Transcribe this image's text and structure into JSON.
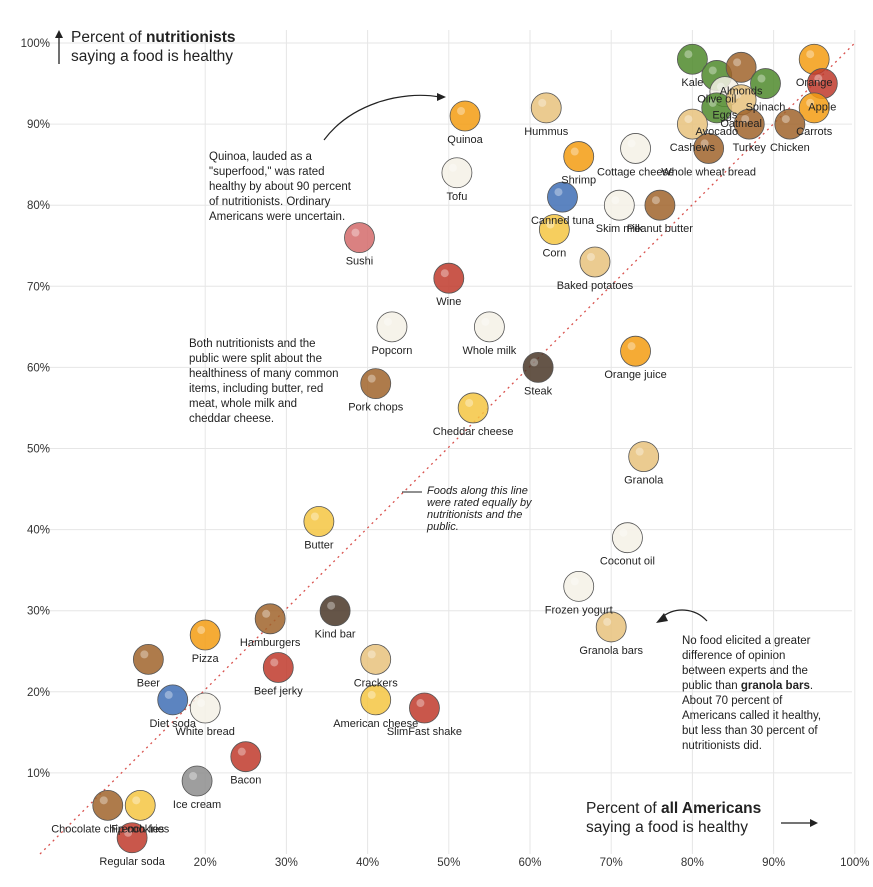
{
  "titles": {
    "y_line1_pre": "Percent of ",
    "y_line1_bold": "nutritionists",
    "y_line2": "saying a food is healthy",
    "x_line1_pre": "Percent of ",
    "x_line1_bold": "all Americans",
    "x_line2": "saying a food is healthy"
  },
  "annotations": {
    "quinoa": "Quinoa, lauded as a \"superfood,\" was rated healthy by about 90 percent of nutritionists. Ordinary Americans were uncertain.",
    "split": "Both nutritionists and the public were split about the healthiness of many common items, including butter, red meat, whole milk and cheddar cheese.",
    "diagonal": "Foods along this line were rated equally by nutritionists and the public.",
    "granola_pre": "No food elicited a greater difference of opinion between experts and the public than ",
    "granola_bold": "granola bars",
    "granola_post": ". About 70 percent of Americans called it healthy, but less than 30 percent of nutritionists did."
  },
  "colors": {
    "grid": "#e6e6e6",
    "diagonal": "#d9534f",
    "green": "#4f8a2b",
    "brown": "#a0642c",
    "tan": "#e7c27d",
    "red": "#c0392b",
    "yellow": "#f4c542",
    "orange": "#f39c12",
    "white": "#f5f1e6",
    "pink": "#d36b6b",
    "dark": "#4a3728",
    "blue": "#3f6fb5",
    "grey": "#8d8d8d"
  },
  "chart_data": {
    "type": "scatter",
    "title": "",
    "xlabel": "Percent of all Americans saying a food is healthy",
    "ylabel": "Percent of nutritionists saying a food is healthy",
    "xlim": [
      10,
      100
    ],
    "ylim": [
      0,
      100
    ],
    "x_ticks": [
      "20%",
      "30%",
      "40%",
      "50%",
      "60%",
      "70%",
      "80%",
      "90%",
      "100%"
    ],
    "y_ticks": [
      "10%",
      "20%",
      "30%",
      "40%",
      "50%",
      "60%",
      "70%",
      "80%",
      "90%",
      "100%"
    ],
    "grid": true,
    "diagonal": "equal rating line",
    "points": [
      {
        "name": "Kale",
        "x": 80,
        "y": 98,
        "color": "green",
        "icon": "kale-icon"
      },
      {
        "name": "Olive oil",
        "x": 83,
        "y": 96,
        "color": "green",
        "icon": "olive-oil-icon"
      },
      {
        "name": "Almonds",
        "x": 86,
        "y": 97,
        "color": "brown",
        "icon": "almonds-icon"
      },
      {
        "name": "Eggs",
        "x": 84,
        "y": 94,
        "color": "white",
        "icon": "eggs-icon"
      },
      {
        "name": "Spinach",
        "x": 89,
        "y": 95,
        "color": "green",
        "icon": "spinach-icon"
      },
      {
        "name": "Orange",
        "x": 95,
        "y": 98,
        "color": "orange",
        "icon": "orange-icon"
      },
      {
        "name": "Apple",
        "x": 96,
        "y": 95,
        "color": "red",
        "icon": "apple-icon"
      },
      {
        "name": "Avocado",
        "x": 83,
        "y": 92,
        "color": "green",
        "icon": "avocado-icon"
      },
      {
        "name": "Oatmeal",
        "x": 86,
        "y": 93,
        "color": "tan",
        "icon": "oatmeal-icon"
      },
      {
        "name": "Carrots",
        "x": 95,
        "y": 92,
        "color": "orange",
        "icon": "carrots-icon"
      },
      {
        "name": "Cashews",
        "x": 80,
        "y": 90,
        "color": "tan",
        "icon": "cashews-icon"
      },
      {
        "name": "Turkey",
        "x": 87,
        "y": 90,
        "color": "brown",
        "icon": "turkey-icon"
      },
      {
        "name": "Chicken",
        "x": 92,
        "y": 90,
        "color": "brown",
        "icon": "chicken-icon"
      },
      {
        "name": "Quinoa",
        "x": 52,
        "y": 91,
        "color": "orange",
        "icon": "quinoa-icon"
      },
      {
        "name": "Hummus",
        "x": 62,
        "y": 92,
        "color": "tan",
        "icon": "hummus-icon"
      },
      {
        "name": "Cottage cheese",
        "x": 73,
        "y": 87,
        "color": "white",
        "icon": "cottage-cheese-icon"
      },
      {
        "name": "Whole wheat bread",
        "x": 82,
        "y": 87,
        "color": "brown",
        "icon": "bread-icon"
      },
      {
        "name": "Shrimp",
        "x": 66,
        "y": 86,
        "color": "orange",
        "icon": "shrimp-icon"
      },
      {
        "name": "Tofu",
        "x": 51,
        "y": 84,
        "color": "white",
        "icon": "tofu-icon"
      },
      {
        "name": "Canned tuna",
        "x": 64,
        "y": 81,
        "color": "blue",
        "icon": "tuna-icon"
      },
      {
        "name": "Skim milk",
        "x": 71,
        "y": 80,
        "color": "white",
        "icon": "skim-milk-icon"
      },
      {
        "name": "Peanut butter",
        "x": 76,
        "y": 80,
        "color": "brown",
        "icon": "peanut-butter-icon"
      },
      {
        "name": "Corn",
        "x": 63,
        "y": 77,
        "color": "yellow",
        "icon": "corn-icon"
      },
      {
        "name": "Sushi",
        "x": 39,
        "y": 76,
        "color": "pink",
        "icon": "sushi-icon"
      },
      {
        "name": "Baked potatoes",
        "x": 68,
        "y": 73,
        "color": "tan",
        "icon": "potato-icon"
      },
      {
        "name": "Wine",
        "x": 50,
        "y": 71,
        "color": "red",
        "icon": "wine-icon"
      },
      {
        "name": "Whole milk",
        "x": 55,
        "y": 65,
        "color": "white",
        "icon": "whole-milk-icon"
      },
      {
        "name": "Popcorn",
        "x": 43,
        "y": 65,
        "color": "white",
        "icon": "popcorn-icon"
      },
      {
        "name": "Steak",
        "x": 61,
        "y": 60,
        "color": "dark",
        "icon": "steak-icon"
      },
      {
        "name": "Orange juice",
        "x": 73,
        "y": 62,
        "color": "orange",
        "icon": "orange-juice-icon"
      },
      {
        "name": "Pork chops",
        "x": 41,
        "y": 58,
        "color": "brown",
        "icon": "pork-chops-icon"
      },
      {
        "name": "Cheddar cheese",
        "x": 53,
        "y": 55,
        "color": "yellow",
        "icon": "cheddar-icon"
      },
      {
        "name": "Granola",
        "x": 74,
        "y": 49,
        "color": "tan",
        "icon": "granola-icon"
      },
      {
        "name": "Coconut oil",
        "x": 72,
        "y": 39,
        "color": "white",
        "icon": "coconut-oil-icon"
      },
      {
        "name": "Butter",
        "x": 34,
        "y": 41,
        "color": "yellow",
        "icon": "butter-icon"
      },
      {
        "name": "Frozen yogurt",
        "x": 66,
        "y": 33,
        "color": "white",
        "icon": "frozen-yogurt-icon"
      },
      {
        "name": "Granola bars",
        "x": 70,
        "y": 28,
        "color": "tan",
        "icon": "granola-bar-icon"
      },
      {
        "name": "Hamburgers",
        "x": 28,
        "y": 29,
        "color": "brown",
        "icon": "hamburger-icon"
      },
      {
        "name": "Kind bar",
        "x": 36,
        "y": 30,
        "color": "dark",
        "icon": "kind-bar-icon"
      },
      {
        "name": "Crackers",
        "x": 41,
        "y": 24,
        "color": "tan",
        "icon": "crackers-icon"
      },
      {
        "name": "Pizza",
        "x": 20,
        "y": 27,
        "color": "orange",
        "icon": "pizza-icon"
      },
      {
        "name": "Beer",
        "x": 13,
        "y": 24,
        "color": "brown",
        "icon": "beer-icon"
      },
      {
        "name": "Beef jerky",
        "x": 29,
        "y": 23,
        "color": "red",
        "icon": "beef-jerky-icon"
      },
      {
        "name": "American cheese",
        "x": 41,
        "y": 19,
        "color": "yellow",
        "icon": "american-cheese-icon"
      },
      {
        "name": "SlimFast shake",
        "x": 47,
        "y": 18,
        "color": "red",
        "icon": "slimfast-icon"
      },
      {
        "name": "Diet soda",
        "x": 16,
        "y": 19,
        "color": "blue",
        "icon": "diet-soda-icon"
      },
      {
        "name": "White bread",
        "x": 20,
        "y": 18,
        "color": "white",
        "icon": "white-bread-icon"
      },
      {
        "name": "Bacon",
        "x": 25,
        "y": 12,
        "color": "red",
        "icon": "bacon-icon"
      },
      {
        "name": "Ice cream",
        "x": 19,
        "y": 9,
        "color": "grey",
        "icon": "ice-cream-icon"
      },
      {
        "name": "Chocolate chip cookies",
        "x": 8,
        "y": 6,
        "color": "brown",
        "icon": "cookie-icon"
      },
      {
        "name": "French fries",
        "x": 12,
        "y": 6,
        "color": "yellow",
        "icon": "fries-icon"
      },
      {
        "name": "Regular soda",
        "x": 11,
        "y": 2,
        "color": "red",
        "icon": "soda-can-icon"
      }
    ]
  }
}
